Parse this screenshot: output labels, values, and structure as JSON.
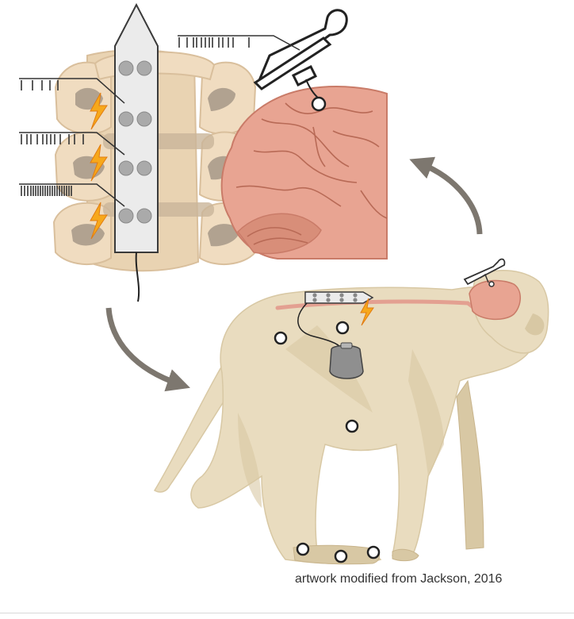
{
  "caption": "artwork modified from Jackson, 2016",
  "colors": {
    "bone": "#f0dcc0",
    "bone_edge": "#d9bf9c",
    "disc": "#c9b59a",
    "foramen": "#9c8f80",
    "array": "#ebebeb",
    "array_edge": "#3a3a3a",
    "electrode": "#aaaaaa",
    "spark": "#f7a81b",
    "spark_edge": "#e07b12",
    "brain": "#e8a492",
    "brain_edge": "#c97b68",
    "brain_dark": "#d88e79",
    "fur": "#e9dcbf",
    "fur_shadow": "#d8c8a4",
    "fur_dark": "#c8b48c",
    "tract": "#e2998c",
    "stimulator": "#8f8f8f",
    "arrow": "#7d776f",
    "spike": "#333333"
  },
  "icons": {
    "spinal_array": "electrode-array-icon",
    "cortical_probe": "cortical-probe-icon",
    "stimulator": "implanted-stimulator-icon",
    "spark": "lightning-bolt-icon",
    "emg_site": "emg-electrode-icon"
  },
  "spike_trains": {
    "cortex": [
      0,
      10,
      18,
      22,
      28,
      33,
      38,
      42,
      50,
      55,
      62,
      68,
      88
    ],
    "level_1": [
      0,
      14,
      26,
      36,
      46
    ],
    "level_2": [
      0,
      7,
      12,
      20,
      27,
      32,
      37,
      42,
      49,
      60,
      67,
      78
    ],
    "level_3": [
      0,
      4,
      8,
      12,
      15,
      18,
      21,
      24,
      27,
      30,
      33,
      36,
      39,
      42,
      45,
      48,
      51,
      54,
      57,
      60,
      63
    ]
  }
}
